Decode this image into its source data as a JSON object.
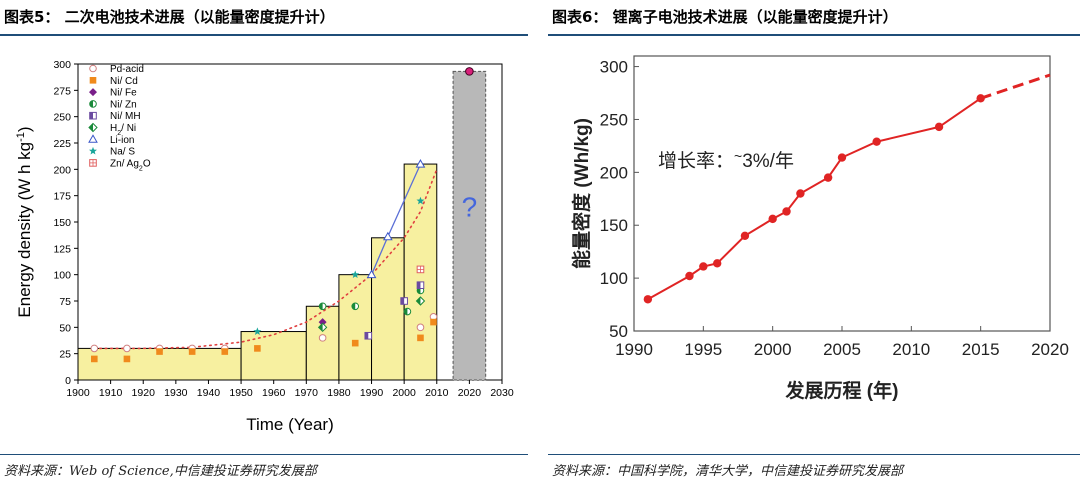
{
  "left_panel": {
    "title": "图表5：  二次电池技术进展（以能量密度提升计）",
    "source": "资料来源：Web of Science,中信建投证券研究发展部"
  },
  "right_panel": {
    "title": "图表6：  锂离子电池技术进展（以能量密度提升计）",
    "source": "资料来源：中国科学院，清华大学，中信建投证券研究发展部"
  },
  "colors": {
    "rule": "#1f4e79",
    "bar_fill": "#f7f0a0",
    "forecast_fill": "#b8b8b8",
    "li_ion_line": "#5b6fd6",
    "trend_dots": "#e04040",
    "right_line": "#e02424",
    "question_mark": "#4466dd"
  },
  "chart_data": [
    {
      "type": "bar",
      "title": "",
      "xlabel": "Time (Year)",
      "ylabel": "Energy density (W h kg-1)",
      "ylabel_parts": {
        "main": "Energy density (W h kg",
        "sup": "-1",
        "end": ")"
      },
      "xlim": [
        1900,
        2030
      ],
      "ylim": [
        0,
        300
      ],
      "xticks": [
        1900,
        1910,
        1920,
        1930,
        1940,
        1950,
        1960,
        1970,
        1980,
        1990,
        2000,
        2010,
        2020,
        2030
      ],
      "yticks": [
        0,
        25,
        50,
        75,
        100,
        125,
        150,
        175,
        200,
        225,
        250,
        275,
        300
      ],
      "bars": [
        {
          "x0": 1900,
          "x1": 1950,
          "value": 30
        },
        {
          "x0": 1950,
          "x1": 1970,
          "value": 46
        },
        {
          "x0": 1970,
          "x1": 1980,
          "value": 70
        },
        {
          "x0": 1980,
          "x1": 1990,
          "value": 100
        },
        {
          "x0": 1990,
          "x1": 2000,
          "value": 135
        },
        {
          "x0": 2000,
          "x1": 2010,
          "value": 205
        }
      ],
      "forecast_bar": {
        "x0": 2015,
        "x1": 2025,
        "value": 293,
        "label": "?"
      },
      "legend": [
        {
          "name": "Pd-acid",
          "marker": "circle-open"
        },
        {
          "name": "Ni/ Cd",
          "marker": "square-orange"
        },
        {
          "name": "Ni/ Fe",
          "marker": "diamond-purple"
        },
        {
          "name": "Ni/ Zn",
          "marker": "circle-half-green"
        },
        {
          "name": "Ni/ MH",
          "marker": "square-half-purple"
        },
        {
          "name": "H2/ Ni",
          "marker": "diamond-half-green",
          "parts": {
            "a": "H",
            "sub": "2",
            "b": "/ Ni"
          }
        },
        {
          "name": "Li-ion",
          "marker": "triangle-blue"
        },
        {
          "name": "Na/ S",
          "marker": "star-teal"
        },
        {
          "name": "Zn/ Ag2O",
          "marker": "square-grid-red",
          "parts": {
            "a": "Zn/ Ag",
            "sub": "2",
            "b": "O"
          }
        }
      ],
      "series": [
        {
          "name": "Pd-acid",
          "marker": "circle-open",
          "points": [
            [
              1905,
              30
            ],
            [
              1915,
              30
            ],
            [
              1925,
              30
            ],
            [
              1935,
              30
            ],
            [
              1945,
              30
            ],
            [
              1975,
              40
            ],
            [
              2005,
              50
            ],
            [
              2009,
              60
            ]
          ]
        },
        {
          "name": "Ni/ Cd",
          "marker": "square-orange",
          "points": [
            [
              1905,
              20
            ],
            [
              1915,
              20
            ],
            [
              1925,
              27
            ],
            [
              1935,
              27
            ],
            [
              1945,
              27
            ],
            [
              1955,
              30
            ],
            [
              1985,
              35
            ],
            [
              2005,
              40
            ],
            [
              2009,
              55
            ]
          ]
        },
        {
          "name": "Ni/ Fe",
          "marker": "diamond-purple",
          "points": [
            [
              1975,
              55
            ]
          ]
        },
        {
          "name": "Ni/ Zn",
          "marker": "circle-half-green",
          "points": [
            [
              1975,
              70
            ],
            [
              1985,
              70
            ],
            [
              2001,
              65
            ],
            [
              2005,
              85
            ]
          ]
        },
        {
          "name": "Ni/ MH",
          "marker": "square-half-purple",
          "points": [
            [
              1989,
              42
            ],
            [
              2000,
              75
            ],
            [
              2005,
              90
            ]
          ]
        },
        {
          "name": "H2/ Ni",
          "marker": "diamond-half-green",
          "points": [
            [
              1975,
              50
            ],
            [
              2005,
              75
            ]
          ]
        },
        {
          "name": "Li-ion",
          "marker": "triangle-blue",
          "line": true,
          "points": [
            [
              1990,
              100
            ],
            [
              1995,
              136
            ],
            [
              2005,
              205
            ]
          ]
        },
        {
          "name": "Na/ S",
          "marker": "star-teal",
          "points": [
            [
              1955,
              46
            ],
            [
              1985,
              100
            ],
            [
              2005,
              170
            ]
          ]
        },
        {
          "name": "Zn/ Ag2O",
          "marker": "square-grid-red",
          "points": [
            [
              2005,
              105
            ]
          ]
        },
        {
          "name": "Forecast",
          "marker": "circle-magenta",
          "points": [
            [
              2020,
              293
            ]
          ]
        }
      ],
      "trend_curve": [
        [
          1905,
          30
        ],
        [
          1920,
          30
        ],
        [
          1935,
          31
        ],
        [
          1950,
          36
        ],
        [
          1960,
          43
        ],
        [
          1970,
          55
        ],
        [
          1980,
          75
        ],
        [
          1990,
          100
        ],
        [
          2000,
          135
        ],
        [
          2005,
          160
        ],
        [
          2010,
          200
        ]
      ]
    },
    {
      "type": "line",
      "title": "",
      "xlabel": "发展历程 (年)",
      "ylabel": "能量密度 (Wh/kg)",
      "xlim": [
        1990,
        2020
      ],
      "ylim": [
        50,
        310
      ],
      "xticks": [
        1990,
        1995,
        2000,
        2005,
        2010,
        2015,
        2020
      ],
      "yticks": [
        50,
        100,
        150,
        200,
        250,
        300
      ],
      "annotation": "增长率：~3%/年",
      "annotation_parts": {
        "a": "增长率：",
        "tilde": "~",
        "b": "3%/年"
      },
      "series": [
        {
          "name": "",
          "style": "solid",
          "x": [
            1991,
            1994,
            1995,
            1996,
            1998,
            2000,
            2001,
            2002,
            2004,
            2005,
            2007.5,
            2012,
            2015
          ],
          "y": [
            80,
            102,
            111,
            114,
            140,
            156,
            163,
            180,
            195,
            214,
            229,
            243,
            270
          ]
        },
        {
          "name": "",
          "style": "dashed",
          "x": [
            2015,
            2020
          ],
          "y": [
            270,
            292
          ]
        }
      ]
    }
  ]
}
